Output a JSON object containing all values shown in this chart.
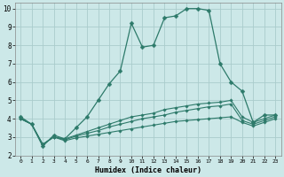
{
  "xlabel": "Humidex (Indice chaleur)",
  "background_color": "#cce8e8",
  "grid_color": "#aacccc",
  "line_color": "#2d7a6a",
  "xlim": [
    -0.5,
    23.5
  ],
  "ylim": [
    2,
    10.3
  ],
  "yticks": [
    2,
    3,
    4,
    5,
    6,
    7,
    8,
    9,
    10
  ],
  "xticks": [
    0,
    1,
    2,
    3,
    4,
    5,
    6,
    7,
    8,
    9,
    10,
    11,
    12,
    13,
    14,
    15,
    16,
    17,
    18,
    19,
    20,
    21,
    22,
    23
  ],
  "series": [
    {
      "x": [
        0,
        1,
        2,
        3,
        4,
        5,
        6,
        7,
        8,
        9,
        10,
        11,
        12,
        13,
        14,
        15,
        16,
        17,
        18,
        19,
        20,
        21,
        22,
        23
      ],
      "y": [
        4.1,
        3.7,
        2.5,
        3.1,
        2.9,
        3.5,
        4.1,
        5.0,
        5.9,
        6.6,
        9.2,
        7.9,
        8.0,
        9.5,
        9.6,
        10.0,
        10.0,
        9.9,
        7.0,
        6.0,
        5.5,
        3.8,
        4.2,
        4.2
      ],
      "linestyle": "-",
      "linewidth": 0.9,
      "markersize": 2.5
    },
    {
      "x": [
        0,
        1,
        2,
        3,
        4,
        5,
        6,
        7,
        8,
        9,
        10,
        11,
        12,
        13,
        14,
        15,
        16,
        17,
        18,
        19,
        20,
        21,
        22,
        23
      ],
      "y": [
        4.0,
        3.7,
        2.6,
        3.0,
        2.9,
        3.1,
        3.3,
        3.5,
        3.7,
        3.9,
        4.1,
        4.2,
        4.3,
        4.5,
        4.6,
        4.7,
        4.8,
        4.85,
        4.9,
        5.0,
        4.1,
        3.8,
        4.0,
        4.2
      ],
      "linestyle": "-",
      "linewidth": 0.8,
      "markersize": 1.8
    },
    {
      "x": [
        0,
        1,
        2,
        3,
        4,
        5,
        6,
        7,
        8,
        9,
        10,
        11,
        12,
        13,
        14,
        15,
        16,
        17,
        18,
        19,
        20,
        21,
        22,
        23
      ],
      "y": [
        4.0,
        3.7,
        2.6,
        3.0,
        2.85,
        3.05,
        3.2,
        3.35,
        3.55,
        3.7,
        3.85,
        4.0,
        4.1,
        4.2,
        4.35,
        4.45,
        4.55,
        4.65,
        4.7,
        4.8,
        3.9,
        3.7,
        3.9,
        4.1
      ],
      "linestyle": "-",
      "linewidth": 0.8,
      "markersize": 1.8
    },
    {
      "x": [
        0,
        1,
        2,
        3,
        4,
        5,
        6,
        7,
        8,
        9,
        10,
        11,
        12,
        13,
        14,
        15,
        16,
        17,
        18,
        19,
        20,
        21,
        22,
        23
      ],
      "y": [
        4.0,
        3.7,
        2.6,
        3.0,
        2.8,
        2.95,
        3.05,
        3.15,
        3.25,
        3.35,
        3.45,
        3.55,
        3.65,
        3.75,
        3.85,
        3.9,
        3.95,
        4.0,
        4.05,
        4.1,
        3.8,
        3.6,
        3.8,
        4.0
      ],
      "linestyle": "-",
      "linewidth": 0.8,
      "markersize": 1.8
    }
  ]
}
